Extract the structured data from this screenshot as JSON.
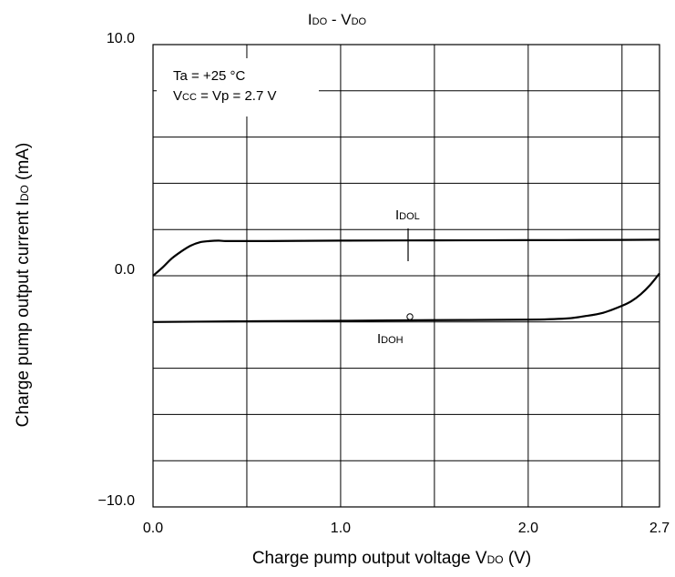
{
  "chart_data": {
    "type": "line",
    "title_main": "I",
    "title_sub": "DO",
    "title_mid": " - V",
    "title_sub2": "DO",
    "xlabel_main": "Charge pump output voltage V",
    "xlabel_sub": "DO",
    "xlabel_tail": " (V)",
    "ylabel_main": "Charge pump output current I",
    "ylabel_sub": "DO",
    "ylabel_tail": " (mA)",
    "xlim": [
      0.0,
      2.7
    ],
    "ylim": [
      -10.0,
      10.0
    ],
    "x_ticks": [
      {
        "value": 0.0,
        "label": "0.0"
      },
      {
        "value": 1.0,
        "label": "1.0"
      },
      {
        "value": 2.0,
        "label": "2.0"
      },
      {
        "value": 2.7,
        "label": "2.7"
      }
    ],
    "y_ticks": [
      {
        "value": 10.0,
        "label": "10.0"
      },
      {
        "value": 0.0,
        "label": "0.0"
      },
      {
        "value": -10.0,
        "label": "−10.0"
      }
    ],
    "x_grid": [
      0.5,
      1.0,
      1.5,
      2.0,
      2.5
    ],
    "y_grid": [
      -8,
      -6,
      -4,
      -2,
      0,
      2,
      4,
      6,
      8
    ],
    "grid": true,
    "conditions": {
      "line1": "Ta = +25 °C",
      "line2_a": "V",
      "line2_sub": "CC",
      "line2_b": " = Vp = 2.7 V"
    },
    "series": [
      {
        "name_main": "I",
        "name_sub": "DOL",
        "x": [
          0.0,
          0.05,
          0.1,
          0.15,
          0.2,
          0.25,
          0.3,
          0.35,
          0.4,
          0.6,
          1.0,
          1.5,
          2.0,
          2.5,
          2.7
        ],
        "y": [
          0.0,
          0.35,
          0.75,
          1.05,
          1.3,
          1.45,
          1.5,
          1.52,
          1.5,
          1.5,
          1.52,
          1.53,
          1.54,
          1.55,
          1.56
        ]
      },
      {
        "name_main": "I",
        "name_sub": "DOH",
        "x": [
          0.0,
          0.5,
          1.0,
          1.5,
          2.0,
          2.2,
          2.3,
          2.4,
          2.5,
          2.55,
          2.6,
          2.65,
          2.7
        ],
        "y": [
          -2.0,
          -1.97,
          -1.95,
          -1.92,
          -1.9,
          -1.85,
          -1.75,
          -1.6,
          -1.3,
          -1.1,
          -0.8,
          -0.4,
          0.1
        ]
      }
    ]
  }
}
